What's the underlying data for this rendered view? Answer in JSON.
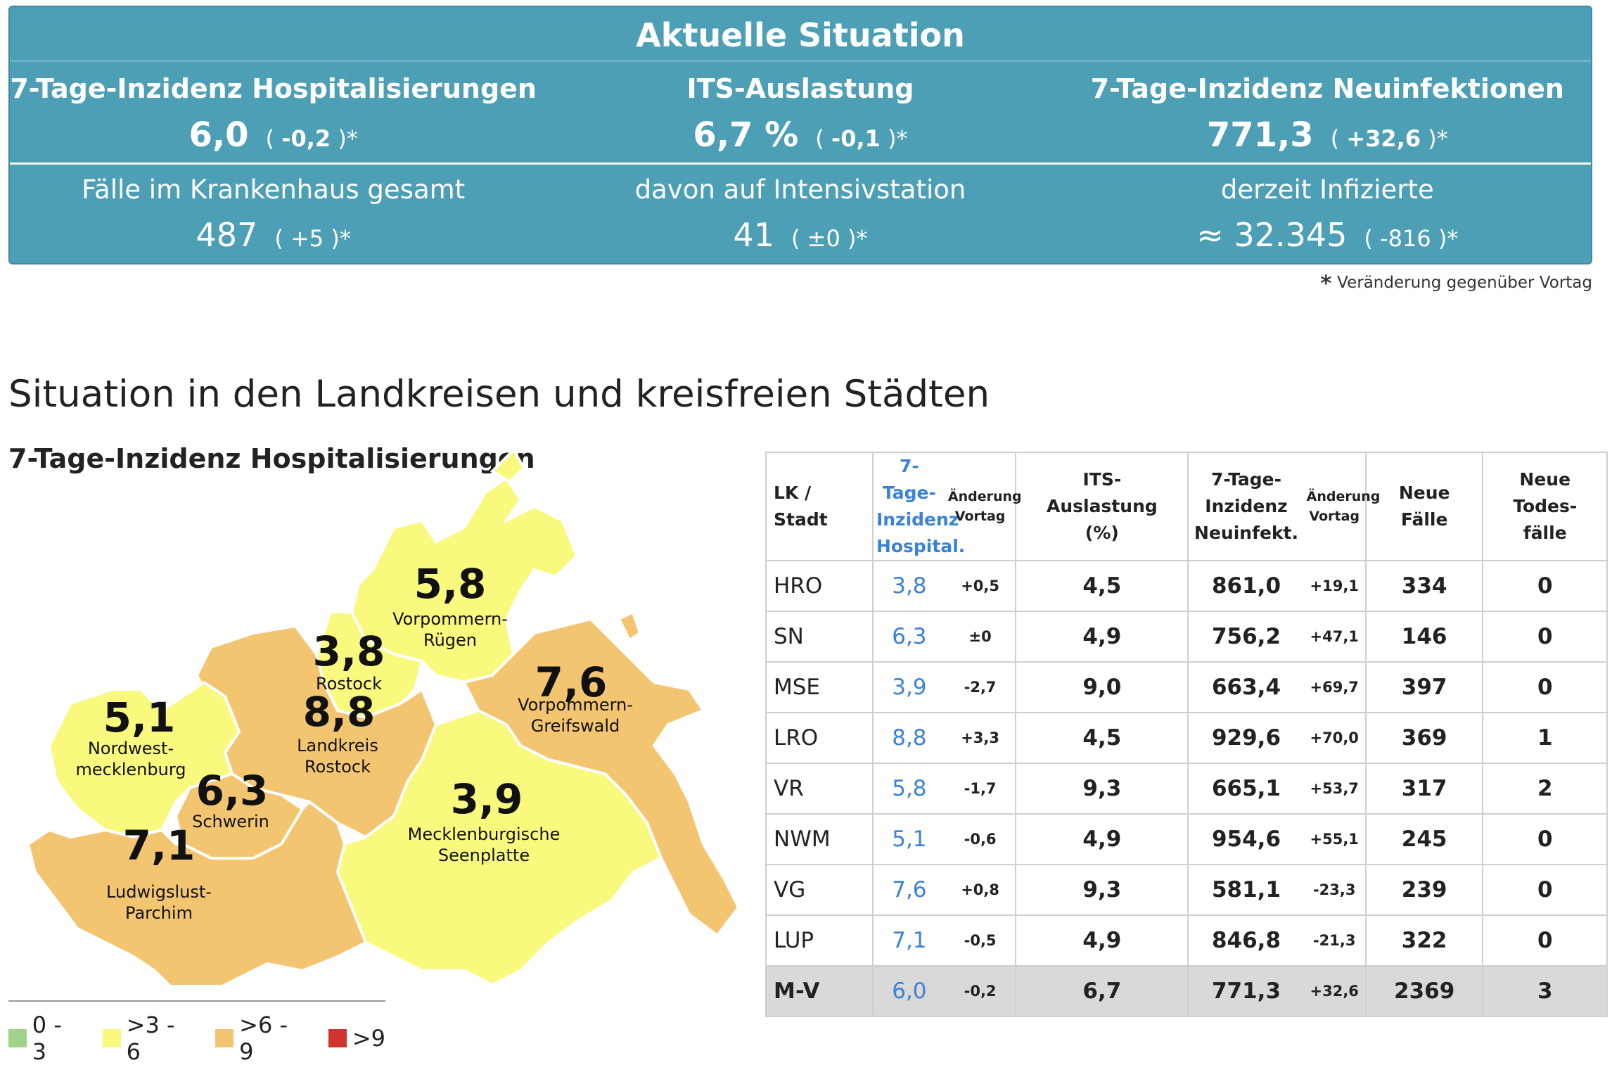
{
  "banner": {
    "title": "Aktuelle Situation",
    "top": [
      {
        "label": "7-Tage-Inzidenz Hospitalisierungen",
        "value": "6,0",
        "change_open": "( ",
        "change": "-0,2",
        "change_close": " )*"
      },
      {
        "label": "ITS-Auslastung",
        "value": "6,7 %",
        "change_open": "( ",
        "change": "-0,1",
        "change_close": " )*"
      },
      {
        "label": "7-Tage-Inzidenz Neuinfektionen",
        "value": "771,3",
        "change_open": "( ",
        "change": "+32,6",
        "change_close": " )*"
      }
    ],
    "bottom": [
      {
        "label": "Fälle im Krankenhaus gesamt",
        "value": "487",
        "change": "( +5 )*"
      },
      {
        "label": "davon auf Intensivstation",
        "value": "41",
        "change": "( ±0 )*"
      },
      {
        "label": "derzeit Infizierte",
        "value": "≈ 32.345",
        "change": "( -816 )*"
      }
    ]
  },
  "footnote": {
    "star": "*",
    "text": "Veränderung gegenüber Vortag"
  },
  "section_title": "Situation in den Landkreisen und kreisfreien Städten",
  "map": {
    "title": "7-Tage-Inzidenz Hospitalisierungen",
    "regions": {
      "vr": {
        "value": "5,8",
        "line1": "Vorpommern-",
        "line2": "Rügen",
        "color": "#f9f97e"
      },
      "hro": {
        "value": "3,8",
        "line1": "Rostock",
        "color": "#f9f97e"
      },
      "lro": {
        "value": "8,8",
        "line1": "Landkreis",
        "line2": "Rostock",
        "color": "#f3c570"
      },
      "vg": {
        "value": "7,6",
        "line1": "Vorpommern-",
        "line2": "Greifswald",
        "color": "#f3c570"
      },
      "nwm": {
        "value": "5,1",
        "line1": "Nordwest-",
        "line2": "mecklenburg",
        "color": "#f9f97e"
      },
      "sn": {
        "value": "6,3",
        "line1": "Schwerin",
        "color": "#f3c570"
      },
      "mse": {
        "value": "3,9",
        "line1": "Mecklenburgische",
        "line2": "Seenplatte",
        "color": "#f9f97e"
      },
      "lup": {
        "value": "7,1",
        "line1": "Ludwigslust-",
        "line2": "Parchim",
        "color": "#f3c570"
      }
    }
  },
  "legend": [
    {
      "label": "0 - 3",
      "color": "#9fd38a"
    },
    {
      "label": ">3 - 6",
      "color": "#f9f97e"
    },
    {
      "label": ">6 - 9",
      "color": "#f3c570"
    },
    {
      "label": ">9",
      "color": "#d1342f"
    }
  ],
  "table": {
    "headers": {
      "lk": [
        "LK /",
        "Stadt"
      ],
      "inz_hosp": [
        "7-Tage-",
        "Inzidenz",
        "Hospital."
      ],
      "chg1": [
        "Änderung",
        "Vortag"
      ],
      "its": [
        "ITS-",
        "Auslastung",
        "(%)"
      ],
      "inz_neu": [
        "7-Tage-",
        "Inzidenz",
        "Neuinfekt."
      ],
      "chg2": [
        "Änderung",
        "Vortag"
      ],
      "neue": [
        "Neue",
        "Fälle"
      ],
      "tod": [
        "Neue",
        "Todes-",
        "fälle"
      ]
    },
    "rows": [
      {
        "name": "HRO",
        "hosp": "3,8",
        "hosp_chg": "+0,5",
        "its": "4,5",
        "inz": "861,0",
        "inz_chg": "+19,1",
        "neue": "334",
        "tod": "0"
      },
      {
        "name": "SN",
        "hosp": "6,3",
        "hosp_chg": "±0",
        "its": "4,9",
        "inz": "756,2",
        "inz_chg": "+47,1",
        "neue": "146",
        "tod": "0"
      },
      {
        "name": "MSE",
        "hosp": "3,9",
        "hosp_chg": "-2,7",
        "its": "9,0",
        "inz": "663,4",
        "inz_chg": "+69,7",
        "neue": "397",
        "tod": "0"
      },
      {
        "name": "LRO",
        "hosp": "8,8",
        "hosp_chg": "+3,3",
        "its": "4,5",
        "inz": "929,6",
        "inz_chg": "+70,0",
        "neue": "369",
        "tod": "1"
      },
      {
        "name": "VR",
        "hosp": "5,8",
        "hosp_chg": "-1,7",
        "its": "9,3",
        "inz": "665,1",
        "inz_chg": "+53,7",
        "neue": "317",
        "tod": "2"
      },
      {
        "name": "NWM",
        "hosp": "5,1",
        "hosp_chg": "-0,6",
        "its": "4,9",
        "inz": "954,6",
        "inz_chg": "+55,1",
        "neue": "245",
        "tod": "0"
      },
      {
        "name": "VG",
        "hosp": "7,6",
        "hosp_chg": "+0,8",
        "its": "9,3",
        "inz": "581,1",
        "inz_chg": "-23,3",
        "neue": "239",
        "tod": "0"
      },
      {
        "name": "LUP",
        "hosp": "7,1",
        "hosp_chg": "-0,5",
        "its": "4,9",
        "inz": "846,8",
        "inz_chg": "-21,3",
        "neue": "322",
        "tod": "0"
      }
    ],
    "total": {
      "name": "M-V",
      "hosp": "6,0",
      "hosp_chg": "-0,2",
      "its": "6,7",
      "inz": "771,3",
      "inz_chg": "+32,6",
      "neue": "2369",
      "tod": "3"
    }
  }
}
